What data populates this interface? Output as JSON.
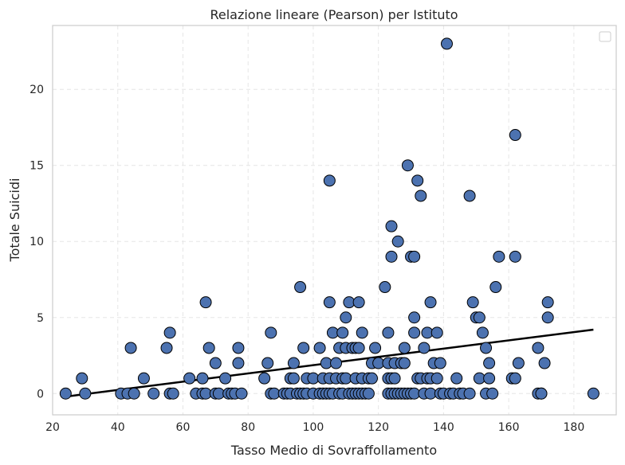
{
  "chart_data": {
    "type": "scatter",
    "title": "Relazione lineare (Pearson) per Istituto",
    "xlabel": "Tasso Medio di Sovraffollamento",
    "ylabel": "Totale Suicidi",
    "xlim": [
      20,
      193
    ],
    "ylim": [
      -1.4,
      24.2
    ],
    "xticks": [
      "20",
      "40",
      "60",
      "80",
      "100",
      "120",
      "140",
      "160",
      "180"
    ],
    "yticks": [
      "0",
      "5",
      "10",
      "15",
      "20"
    ],
    "grid": true,
    "legend": "top-right",
    "point_color": "#4c72b0",
    "line_color": "#000000",
    "points": [
      [
        24,
        0
      ],
      [
        29,
        1
      ],
      [
        30,
        0
      ],
      [
        41,
        0
      ],
      [
        43,
        0
      ],
      [
        44,
        3
      ],
      [
        45,
        0
      ],
      [
        48,
        1
      ],
      [
        51,
        0
      ],
      [
        55,
        3
      ],
      [
        56,
        0
      ],
      [
        56,
        4
      ],
      [
        57,
        0
      ],
      [
        62,
        1
      ],
      [
        64,
        0
      ],
      [
        66,
        0
      ],
      [
        66,
        1
      ],
      [
        67,
        0
      ],
      [
        67,
        6
      ],
      [
        68,
        3
      ],
      [
        70,
        0
      ],
      [
        70,
        2
      ],
      [
        71,
        0
      ],
      [
        73,
        1
      ],
      [
        74,
        0
      ],
      [
        75,
        0
      ],
      [
        76,
        0
      ],
      [
        77,
        3
      ],
      [
        77,
        2
      ],
      [
        78,
        0
      ],
      [
        85,
        1
      ],
      [
        86,
        2
      ],
      [
        87,
        0
      ],
      [
        87,
        4
      ],
      [
        88,
        0
      ],
      [
        91,
        0
      ],
      [
        92,
        0
      ],
      [
        93,
        1
      ],
      [
        93,
        0
      ],
      [
        94,
        1
      ],
      [
        94,
        2
      ],
      [
        95,
        0
      ],
      [
        96,
        0
      ],
      [
        96,
        7
      ],
      [
        97,
        0
      ],
      [
        97,
        3
      ],
      [
        98,
        1
      ],
      [
        98,
        0
      ],
      [
        100,
        0
      ],
      [
        100,
        1
      ],
      [
        102,
        0
      ],
      [
        102,
        3
      ],
      [
        103,
        0
      ],
      [
        103,
        1
      ],
      [
        104,
        0
      ],
      [
        104,
        2
      ],
      [
        105,
        0
      ],
      [
        105,
        14
      ],
      [
        105,
        6
      ],
      [
        105,
        1
      ],
      [
        106,
        4
      ],
      [
        106,
        0
      ],
      [
        107,
        2
      ],
      [
        107,
        1
      ],
      [
        108,
        3
      ],
      [
        108,
        0
      ],
      [
        109,
        0
      ],
      [
        109,
        4
      ],
      [
        109,
        1
      ],
      [
        110,
        1
      ],
      [
        110,
        3
      ],
      [
        110,
        5
      ],
      [
        111,
        6
      ],
      [
        111,
        0
      ],
      [
        112,
        0
      ],
      [
        112,
        3
      ],
      [
        113,
        0
      ],
      [
        113,
        1
      ],
      [
        113,
        3
      ],
      [
        114,
        0
      ],
      [
        114,
        3
      ],
      [
        114,
        6
      ],
      [
        115,
        1
      ],
      [
        115,
        0
      ],
      [
        115,
        4
      ],
      [
        116,
        0
      ],
      [
        117,
        1
      ],
      [
        117,
        0
      ],
      [
        118,
        2
      ],
      [
        118,
        1
      ],
      [
        119,
        3
      ],
      [
        120,
        2
      ],
      [
        122,
        7
      ],
      [
        123,
        0
      ],
      [
        123,
        4
      ],
      [
        123,
        1
      ],
      [
        123,
        2
      ],
      [
        124,
        9
      ],
      [
        124,
        11
      ],
      [
        124,
        1
      ],
      [
        124,
        0
      ],
      [
        125,
        0
      ],
      [
        125,
        2
      ],
      [
        125,
        1
      ],
      [
        126,
        10
      ],
      [
        126,
        0
      ],
      [
        127,
        2
      ],
      [
        127,
        0
      ],
      [
        128,
        3
      ],
      [
        128,
        0
      ],
      [
        128,
        2
      ],
      [
        129,
        0
      ],
      [
        129,
        15
      ],
      [
        130,
        9
      ],
      [
        130,
        0
      ],
      [
        131,
        4
      ],
      [
        131,
        9
      ],
      [
        131,
        5
      ],
      [
        131,
        0
      ],
      [
        132,
        14
      ],
      [
        132,
        1
      ],
      [
        133,
        13
      ],
      [
        133,
        1
      ],
      [
        134,
        3
      ],
      [
        134,
        0
      ],
      [
        135,
        4
      ],
      [
        135,
        1
      ],
      [
        136,
        0
      ],
      [
        136,
        1
      ],
      [
        136,
        6
      ],
      [
        137,
        2
      ],
      [
        138,
        4
      ],
      [
        138,
        1
      ],
      [
        139,
        2
      ],
      [
        139,
        0
      ],
      [
        140,
        0
      ],
      [
        141,
        23
      ],
      [
        142,
        0
      ],
      [
        143,
        0
      ],
      [
        144,
        1
      ],
      [
        145,
        0
      ],
      [
        146,
        0
      ],
      [
        148,
        13
      ],
      [
        148,
        0
      ],
      [
        149,
        6
      ],
      [
        150,
        5
      ],
      [
        151,
        1
      ],
      [
        151,
        5
      ],
      [
        152,
        4
      ],
      [
        153,
        0
      ],
      [
        153,
        3
      ],
      [
        154,
        2
      ],
      [
        154,
        1
      ],
      [
        155,
        0
      ],
      [
        156,
        7
      ],
      [
        157,
        9
      ],
      [
        161,
        1
      ],
      [
        162,
        1
      ],
      [
        162,
        9
      ],
      [
        162,
        17
      ],
      [
        163,
        2
      ],
      [
        169,
        0
      ],
      [
        169,
        3
      ],
      [
        170,
        0
      ],
      [
        170,
        0
      ],
      [
        171,
        2
      ],
      [
        172,
        5
      ],
      [
        172,
        6
      ],
      [
        186,
        0
      ]
    ],
    "regression_line": [
      [
        24,
        -0.2
      ],
      [
        186,
        4.2
      ]
    ]
  }
}
